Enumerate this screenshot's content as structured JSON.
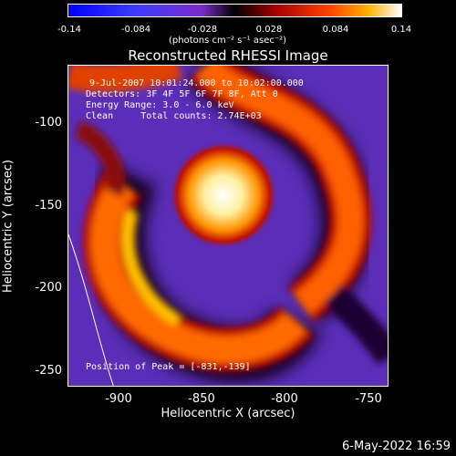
{
  "colorbar": {
    "ticks": [
      "-0.14",
      "-0.084",
      "-0.028",
      "0.028",
      "0.084",
      "0.14"
    ],
    "units": "(photons cm⁻² s⁻¹ asec⁻²)"
  },
  "title": "Reconstructed RHESSI Image",
  "annotation": {
    "line1": "9-Jul-2007 10:01:24.000 to 10:02:00.000",
    "line2": "Detectors: 3F 4F 5F 6F 7F 8F, Att 0",
    "line3": "Energy Range: 3.0 - 6.0 keV",
    "line4": "Clean     Total counts: 2.74E+03",
    "peak": "Position of Peak = [-831,-139]"
  },
  "axes": {
    "xlabel": "Heliocentric X (arcsec)",
    "ylabel": "Heliocentric Y (arcsec)",
    "xticks": [
      "-900",
      "-850",
      "-800",
      "-750"
    ],
    "yticks": [
      "-100",
      "-150",
      "-200",
      "-250"
    ]
  },
  "footer": "6-May-2022 16:59"
}
